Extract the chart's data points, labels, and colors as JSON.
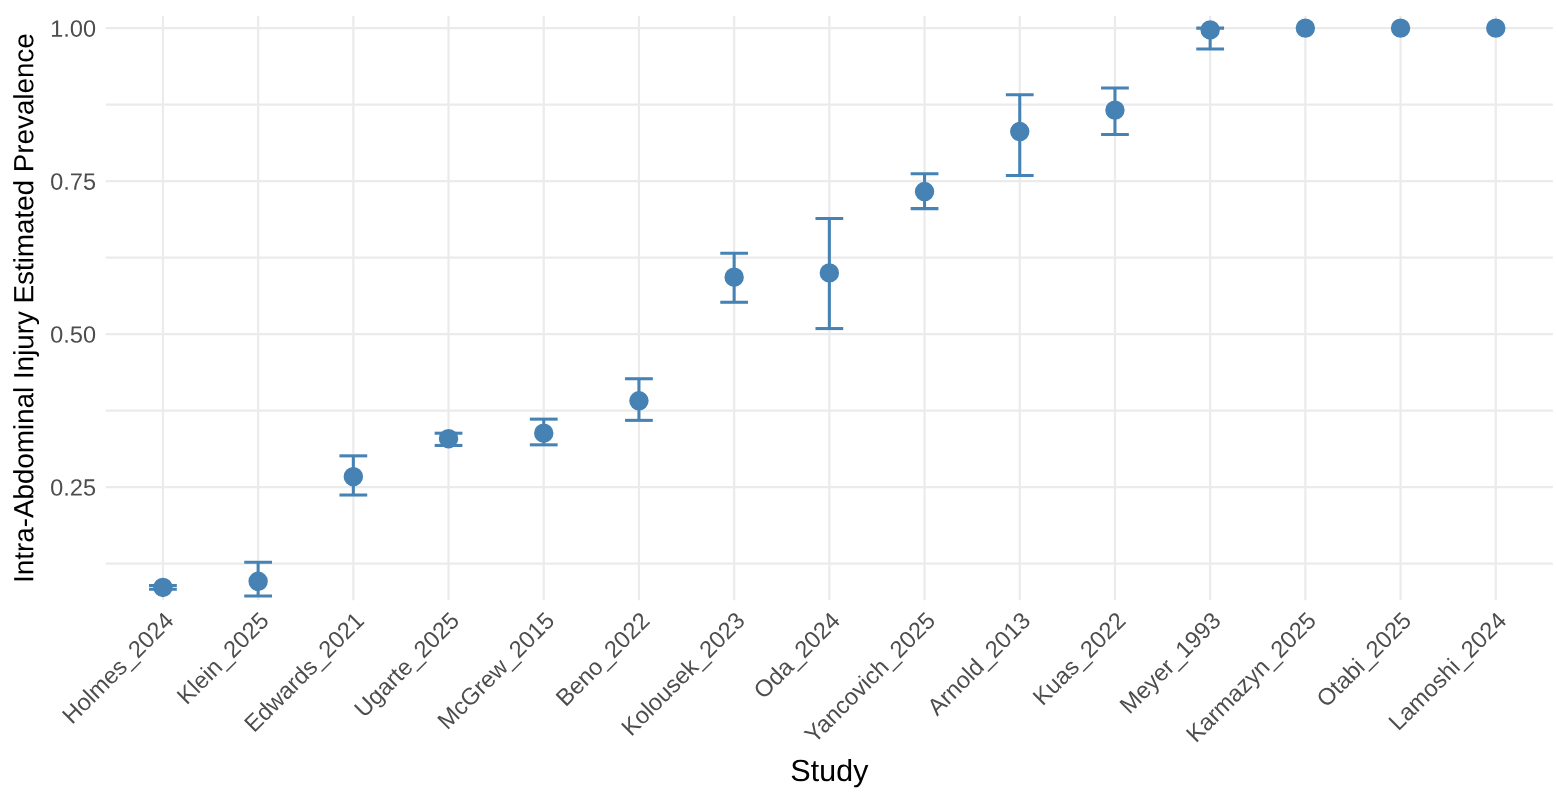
{
  "chart_data": {
    "type": "scatter",
    "xlabel": "Study",
    "ylabel": "Intra-Abdominal Injury Estimated Prevalence",
    "categories": [
      "Holmes_2024",
      "Klein_2025",
      "Edwards_2021",
      "Ugarte_2025",
      "McGrew_2015",
      "Beno_2022",
      "Kolousek_2023",
      "Oda_2024",
      "Yancovich_2025",
      "Arnold_2013",
      "Kuas_2022",
      "Meyer_1993",
      "Karmazyn_2025",
      "Otabi_2025",
      "Lamoshi_2024"
    ],
    "series": [
      {
        "color": "#4682b4",
        "values": [
          0.086,
          0.096,
          0.267,
          0.329,
          0.338,
          0.391,
          0.593,
          0.6,
          0.733,
          0.831,
          0.866,
          0.997,
          1.0,
          1.0,
          1.0
        ],
        "errors": [
          [
            0.083,
            0.089
          ],
          [
            0.072,
            0.127
          ],
          [
            0.237,
            0.301
          ],
          [
            0.318,
            0.338
          ],
          [
            0.319,
            0.361
          ],
          [
            0.359,
            0.427
          ],
          [
            0.552,
            0.632
          ],
          [
            0.509,
            0.689
          ],
          [
            0.705,
            0.762
          ],
          [
            0.759,
            0.891
          ],
          [
            0.826,
            0.902
          ],
          [
            0.966,
            1.0
          ],
          null,
          null,
          null
        ]
      }
    ],
    "marker": "circle",
    "ylim": [
      0.065,
      1.02
    ],
    "yticks": [
      {
        "value": 0.125,
        "label": null
      },
      0.25,
      {
        "value": 0.375,
        "label": null
      },
      {
        "value": 0.5,
        "label": "0.50"
      },
      {
        "value": 0.625,
        "label": null
      },
      0.75,
      {
        "value": 0.875,
        "label": null
      },
      {
        "value": 1.0,
        "label": "1.00"
      }
    ],
    "grid": true
  }
}
